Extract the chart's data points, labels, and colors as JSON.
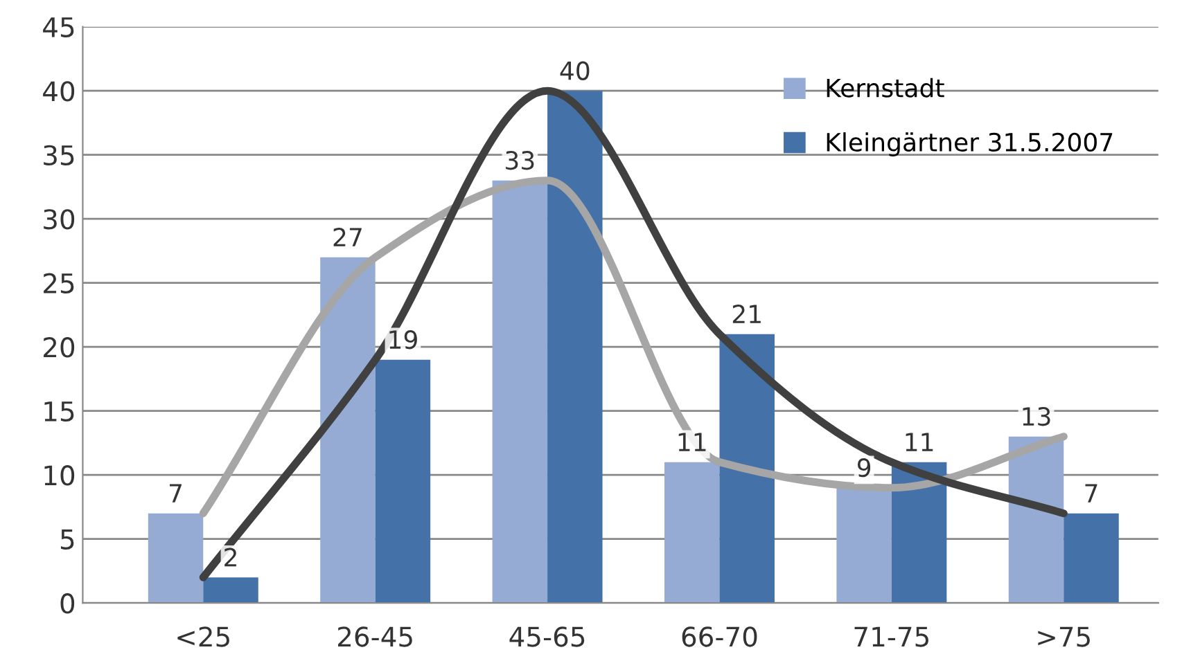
{
  "chart_data": {
    "type": "bar",
    "categories": [
      "<25",
      "26-45",
      "45-65",
      "66-70",
      "71-75",
      ">75"
    ],
    "series": [
      {
        "name": "Kernstadt",
        "color": "#95abd3",
        "values": [
          7,
          27,
          33,
          11,
          9,
          13
        ]
      },
      {
        "name": "Kleingärtner 31.5.2007",
        "color": "#4471a7",
        "values": [
          2,
          19,
          40,
          21,
          11,
          7
        ]
      },
      {
        "type": "line",
        "color": "#a6a6a6",
        "values": [
          7,
          27,
          33,
          11,
          9,
          13
        ],
        "value_labels": [
          null,
          null,
          null,
          null,
          null,
          null
        ]
      },
      {
        "type": "line",
        "color": "#404040",
        "values": [
          2,
          19,
          40,
          21,
          11,
          7
        ],
        "value_labels": [
          null,
          null,
          null,
          null,
          null,
          null
        ]
      }
    ],
    "ylim": [
      0,
      45
    ],
    "yticks": [
      0,
      5,
      10,
      15,
      20,
      25,
      30,
      35,
      40,
      45
    ],
    "grid": "y",
    "legend": "top right",
    "data_labels": true,
    "marker": "none",
    "line_style": "solid"
  }
}
